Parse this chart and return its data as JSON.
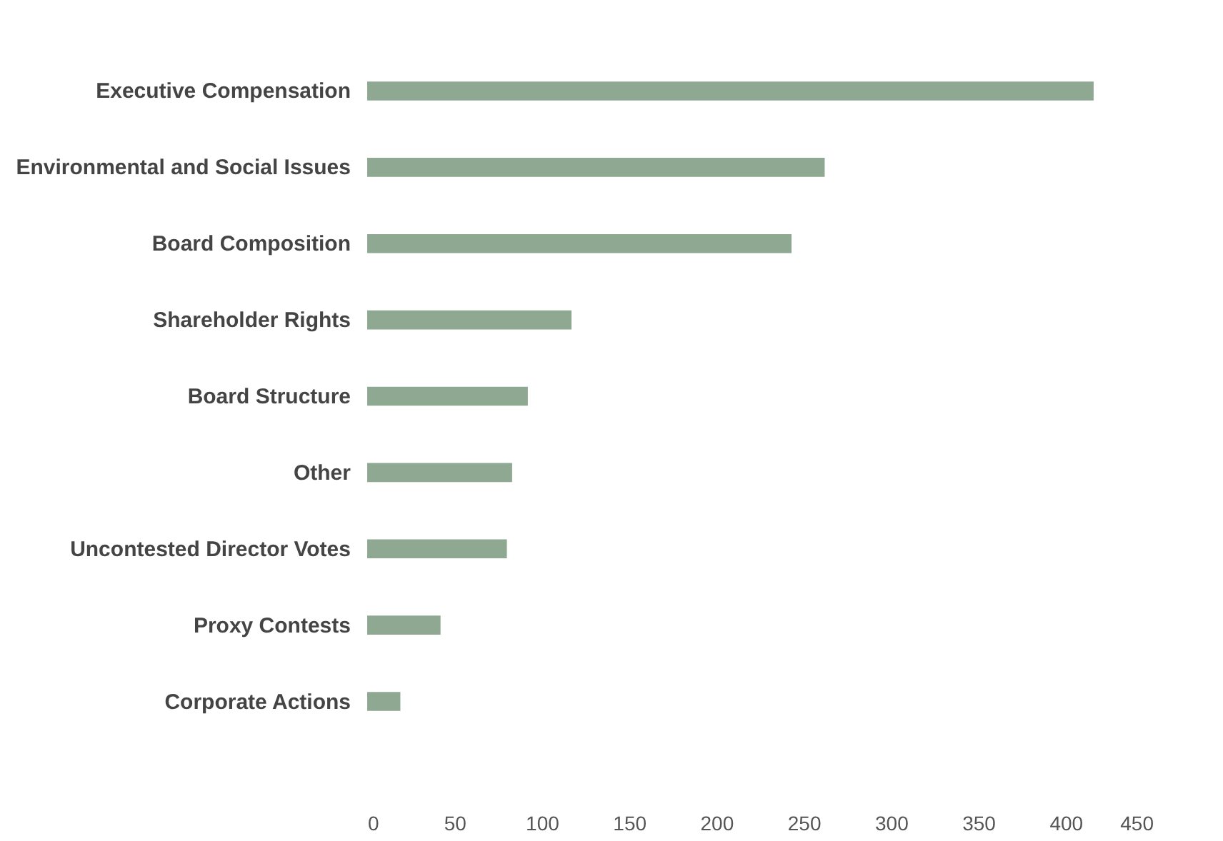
{
  "chart_data": {
    "type": "bar",
    "orientation": "horizontal",
    "categories": [
      "Executive Compensation",
      "Environmental and Social Issues",
      "Board Composition",
      "Shareholder Rights",
      "Board Structure",
      "Other",
      "Uncontested Director Votes",
      "Proxy Contests",
      "Corporate Actions"
    ],
    "values": [
      416,
      262,
      243,
      117,
      92,
      83,
      80,
      42,
      19
    ],
    "color": "#8fa892",
    "xlim": [
      0,
      450
    ],
    "xticks": [
      0,
      50,
      100,
      150,
      200,
      250,
      300,
      350,
      400,
      450
    ],
    "grid": false
  }
}
